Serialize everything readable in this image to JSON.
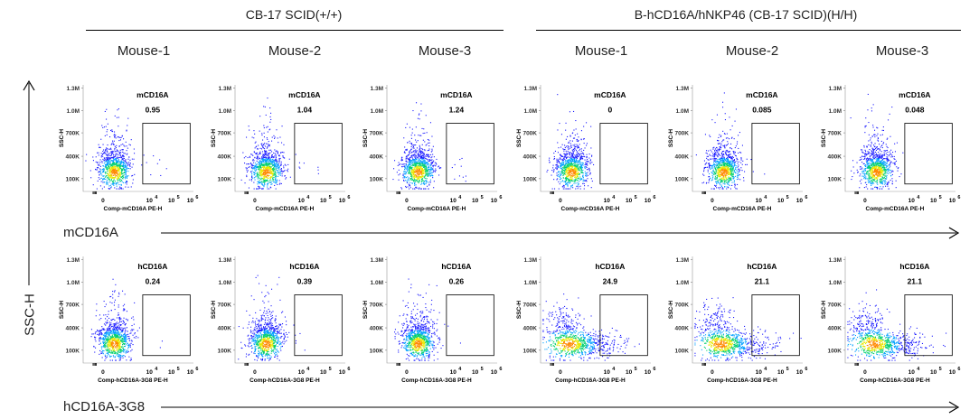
{
  "groups": [
    {
      "title": "CB-17 SCID(+/+)"
    },
    {
      "title": "B-hCD16A/hNKP46 (CB-17 SCID)(H/H)"
    }
  ],
  "mice": [
    "Mouse-1",
    "Mouse-2",
    "Mouse-3",
    "Mouse-1",
    "Mouse-2",
    "Mouse-3"
  ],
  "row_labels": {
    "row1": "mCD16A",
    "row2": "hCD16A-3G8",
    "y_axis": "SSC-H"
  },
  "axes": {
    "y_title": "SSC-H",
    "y_ticks": [
      "100K",
      "400K",
      "700K",
      "1.0M",
      "1.3M"
    ],
    "x_ticks": [
      "0",
      "10",
      "10",
      "10"
    ],
    "x_exponents": [
      "",
      "4",
      "5",
      "6"
    ],
    "row1_xlabel": "Comp-mCD16A PE-H",
    "row2_xlabel": "Comp-hCD16A-3G8 PE-H"
  },
  "chart_data": {
    "type": "scatter",
    "subtype": "flow-cytometry-density-plot",
    "y_axis": {
      "label": "SSC-H",
      "ticks": [
        "100K",
        "400K",
        "700K",
        "1.0M",
        "1.3M"
      ]
    },
    "rows": [
      {
        "marker": "mCD16A",
        "xlabel": "Comp-mCD16A PE-H",
        "gate_label": "mCD16A",
        "gate_percentages": [
          "0.95",
          "1.04",
          "1.24",
          "0",
          "0.085",
          "0.048"
        ]
      },
      {
        "marker": "hCD16A",
        "xlabel": "Comp-hCD16A-3G8 PE-H",
        "gate_label": "hCD16A",
        "gate_percentages": [
          "0.24",
          "0.39",
          "0.26",
          "24.9",
          "21.1",
          "21.1"
        ]
      }
    ],
    "columns": [
      {
        "group": "CB-17 SCID(+/+)",
        "mouse": "Mouse-1"
      },
      {
        "group": "CB-17 SCID(+/+)",
        "mouse": "Mouse-2"
      },
      {
        "group": "CB-17 SCID(+/+)",
        "mouse": "Mouse-3"
      },
      {
        "group": "B-hCD16A/hNKP46 (CB-17 SCID)(H/H)",
        "mouse": "Mouse-1"
      },
      {
        "group": "B-hCD16A/hNKP46 (CB-17 SCID)(H/H)",
        "mouse": "Mouse-2"
      },
      {
        "group": "B-hCD16A/hNKP46 (CB-17 SCID)(H/H)",
        "mouse": "Mouse-3"
      }
    ],
    "density_colors": [
      "#1a1aff",
      "#00a0ff",
      "#00d070",
      "#e8e800",
      "#ff8800"
    ]
  }
}
